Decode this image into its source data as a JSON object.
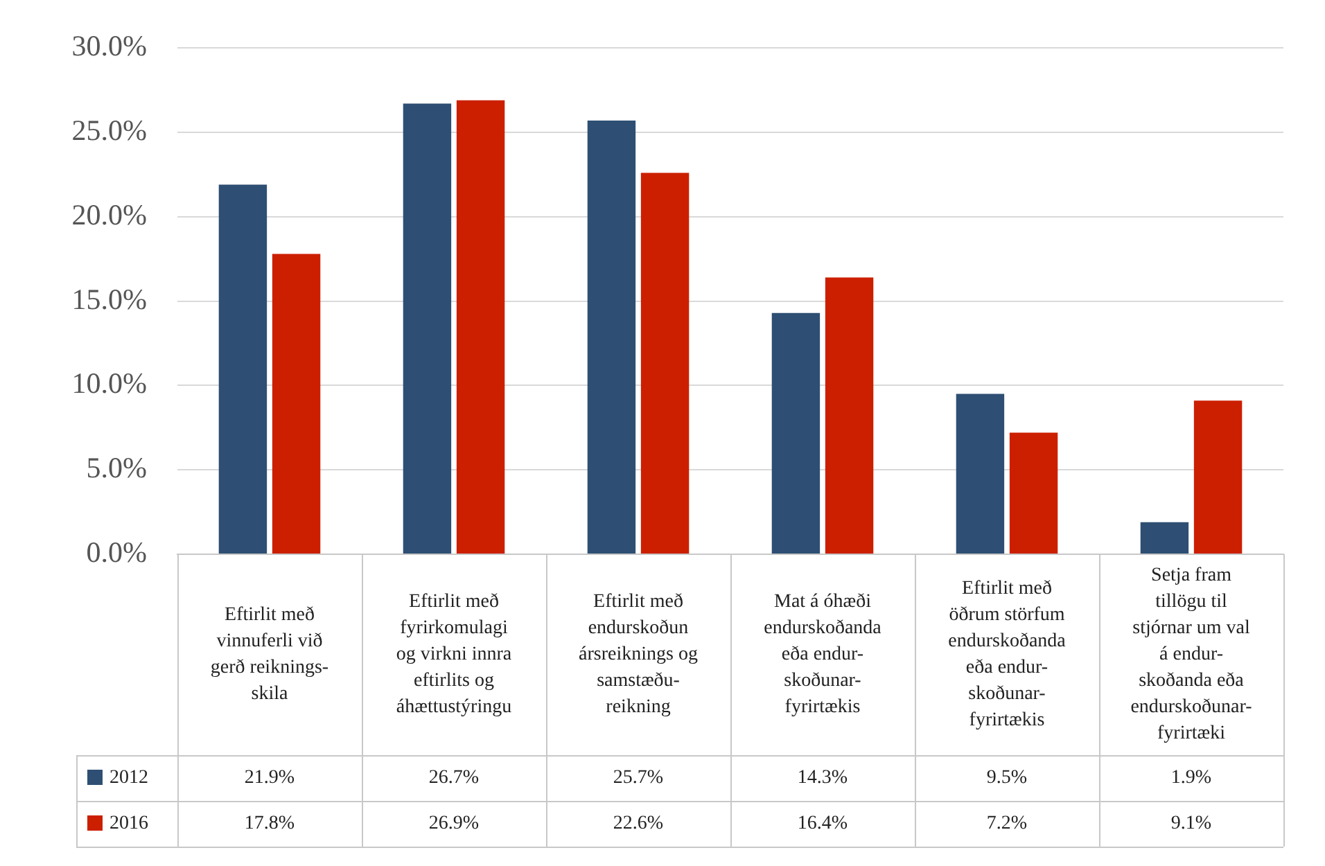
{
  "chart_data": {
    "type": "bar",
    "categories": [
      "Eftirlit með\nvinnuferli við\ngerð reiknings-\nskila",
      "Eftirlit með\nfyrirkomulagi\nog virkni innra\neftirlits og\náhættustýringu",
      "Eftirlit með\nendurskoðun\nársreiknings og\nsamstæðu-\nreikning",
      "Mat á óhæði\nendurskoðanda\neða endur-\nskoðunar-\nfyrirtækis",
      "Eftirlit með\nöðrum störfum\nendurskoðanda\neða endur-\nskoðunar-\nfyrirtækis",
      "Setja fram\ntillögu til\nstjórnar um val\ná endur-\nskoðanda eða\nendurskoðunar-\nfyrirtæki"
    ],
    "series": [
      {
        "name": "2012",
        "color": "#2e4f73",
        "values": [
          21.9,
          26.7,
          25.7,
          14.3,
          9.5,
          1.9
        ],
        "value_labels": [
          "21.9%",
          "26.7%",
          "25.7%",
          "14.3%",
          "9.5%",
          "1.9%"
        ]
      },
      {
        "name": "2016",
        "color": "#cc1f00",
        "values": [
          17.8,
          26.9,
          22.6,
          16.4,
          7.2,
          9.1
        ],
        "value_labels": [
          "17.8%",
          "26.9%",
          "22.6%",
          "16.4%",
          "7.2%",
          "9.1%"
        ]
      }
    ],
    "ylim": [
      0,
      30
    ],
    "yticks": [
      {
        "value": 0,
        "label": "0.0%"
      },
      {
        "value": 5,
        "label": "5.0%"
      },
      {
        "value": 10,
        "label": "10.0%"
      },
      {
        "value": 15,
        "label": "15.0%"
      },
      {
        "value": 20,
        "label": "20.0%"
      },
      {
        "value": 25,
        "label": "25.0%"
      },
      {
        "value": 30,
        "label": "30.0%"
      }
    ],
    "grid": "y",
    "legend": "bottom left"
  }
}
